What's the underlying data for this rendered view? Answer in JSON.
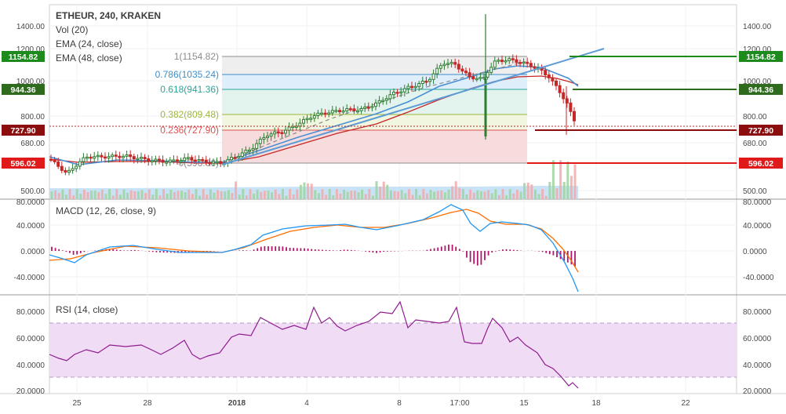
{
  "header": {
    "symbol_line": "ETHEUR, 240, KRAKEN",
    "studies": [
      "Vol (20)",
      "EMA (24, close)",
      "EMA (48, close)"
    ]
  },
  "colors": {
    "bull": "#2e7d32",
    "bear": "#c62828",
    "ema24": "#4a8fd4",
    "ema48": "#c62828",
    "macd": "#2196f3",
    "signal": "#ff6d00",
    "hist": "#b0176a",
    "rsi": "#8e1b8e",
    "rsi_band": "#f1dcf6",
    "tag_green": "#1d8a1d",
    "tag_olive": "#2e6b1c",
    "tag_maroon": "#8b0d0d",
    "tag_red": "#e01a1a"
  },
  "price_axis": {
    "ticks": [
      "1400.00",
      "1200.00",
      "1000.00",
      "800.00",
      "680.00",
      "500.00"
    ],
    "tags": [
      {
        "label": "1154.82",
        "color": "#1d8a1d"
      },
      {
        "label": "944.36",
        "color": "#2e6b1c"
      },
      {
        "label": "727.90",
        "color": "#8b0d0d"
      },
      {
        "label": "596.02",
        "color": "#e01a1a"
      }
    ]
  },
  "fib_levels": [
    {
      "label": "1(1154.82)",
      "value": 1154.82,
      "color": "#8c8c8c"
    },
    {
      "label": "0.786(1035.24)",
      "value": 1035.24,
      "color": "#3d8ec9"
    },
    {
      "label": "0.618(941.36)",
      "value": 941.36,
      "color": "#26a69a"
    },
    {
      "label": "0.382(809.48)",
      "value": 809.48,
      "color": "#9bb83a"
    },
    {
      "label": "0.236(727.90)",
      "value": 727.9,
      "color": "#e05050"
    },
    {
      "label": "0(596.06)",
      "value": 596.06,
      "color": "#8c8c8c"
    }
  ],
  "macd_panel": {
    "label": "MACD (12, 26, close, 9)",
    "ticks": [
      "80.0000",
      "40.0000",
      "0.0000",
      "-40.0000"
    ]
  },
  "rsi_panel": {
    "label": "RSI (14, close)",
    "ticks": [
      "80.0000",
      "60.0000",
      "40.0000",
      "20.0000"
    ],
    "band": [
      30,
      70
    ]
  },
  "time_axis": [
    "25",
    "28",
    "2018",
    "4",
    "8",
    "17:00",
    "15",
    "18",
    "22"
  ]
}
